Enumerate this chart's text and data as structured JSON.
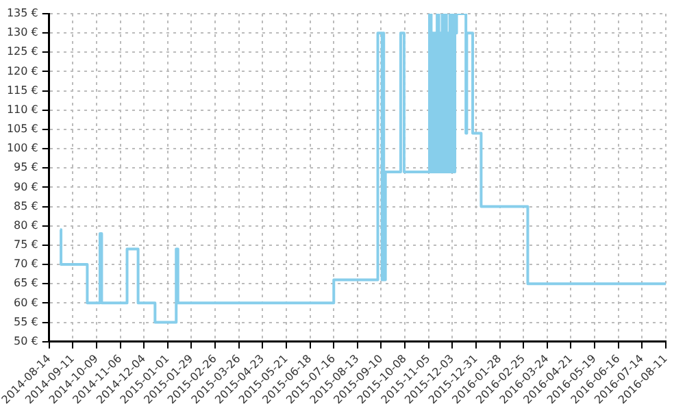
{
  "chart_data": {
    "type": "step",
    "grid": true,
    "marker": "none",
    "xlim": [
      "2014-08-14",
      "2016-08-11"
    ],
    "xticks": [
      "2014-08-14",
      "2014-09-11",
      "2014-10-09",
      "2014-11-06",
      "2014-12-04",
      "2015-01-01",
      "2015-01-29",
      "2015-02-26",
      "2015-03-26",
      "2015-04-23",
      "2015-05-21",
      "2015-06-18",
      "2015-07-16",
      "2015-08-13",
      "2015-09-10",
      "2015-10-08",
      "2015-11-05",
      "2015-12-03",
      "2015-12-31",
      "2016-01-28",
      "2016-02-25",
      "2016-03-24",
      "2016-04-21",
      "2016-05-19",
      "2016-06-16",
      "2016-07-14",
      "2016-08-11"
    ],
    "ylim": [
      50,
      135
    ],
    "yticks": [
      {
        "value": 50,
        "label": "50 €"
      },
      {
        "value": 55,
        "label": "55 €"
      },
      {
        "value": 60,
        "label": "60 €"
      },
      {
        "value": 65,
        "label": "65 €"
      },
      {
        "value": 70,
        "label": "70 €"
      },
      {
        "value": 75,
        "label": "75 €"
      },
      {
        "value": 80,
        "label": "80 €"
      },
      {
        "value": 85,
        "label": "85 €"
      },
      {
        "value": 90,
        "label": "90 €"
      },
      {
        "value": 95,
        "label": "95 €"
      },
      {
        "value": 100,
        "label": "100 €"
      },
      {
        "value": 105,
        "label": "105 €"
      },
      {
        "value": 110,
        "label": "110 €"
      },
      {
        "value": 115,
        "label": "115 €"
      },
      {
        "value": 120,
        "label": "120 €"
      },
      {
        "value": 125,
        "label": "125 €"
      },
      {
        "value": 130,
        "label": "130 €"
      },
      {
        "value": 135,
        "label": "135 €"
      }
    ],
    "series": [
      {
        "color": "#87ceeb",
        "x": [
          "2014-08-27",
          "2014-08-28",
          "2014-09-28",
          "2014-10-13",
          "2014-10-15",
          "2014-11-14",
          "2014-11-27",
          "2014-12-17",
          "2015-01-11",
          "2015-01-13",
          "2015-07-16",
          "2015-09-06",
          "2015-09-11",
          "2015-09-12",
          "2015-09-13",
          "2015-09-15",
          "2015-10-03",
          "2015-10-07",
          "2015-11-06",
          "2015-11-08",
          "2015-11-09",
          "2015-11-11",
          "2015-11-12",
          "2015-11-14",
          "2015-11-15",
          "2015-11-17",
          "2015-11-18",
          "2015-11-20",
          "2015-11-21",
          "2015-11-23",
          "2015-11-24",
          "2015-11-26",
          "2015-11-27",
          "2015-11-29",
          "2015-11-30",
          "2015-12-02",
          "2015-12-03",
          "2015-12-05",
          "2015-12-06",
          "2015-12-08",
          "2015-12-19",
          "2015-12-20",
          "2015-12-27",
          "2016-01-06",
          "2016-03-01",
          "2016-08-11"
        ],
        "values": [
          79,
          70,
          60,
          78,
          60,
          74,
          60,
          55,
          74,
          60,
          66,
          130,
          66,
          130,
          66,
          94,
          130,
          94,
          135,
          94,
          130,
          94,
          130,
          94,
          135,
          94,
          130,
          94,
          135,
          94,
          135,
          94,
          130,
          94,
          135,
          94,
          135,
          94,
          130,
          135,
          104,
          130,
          104,
          85,
          65,
          65
        ]
      }
    ]
  }
}
